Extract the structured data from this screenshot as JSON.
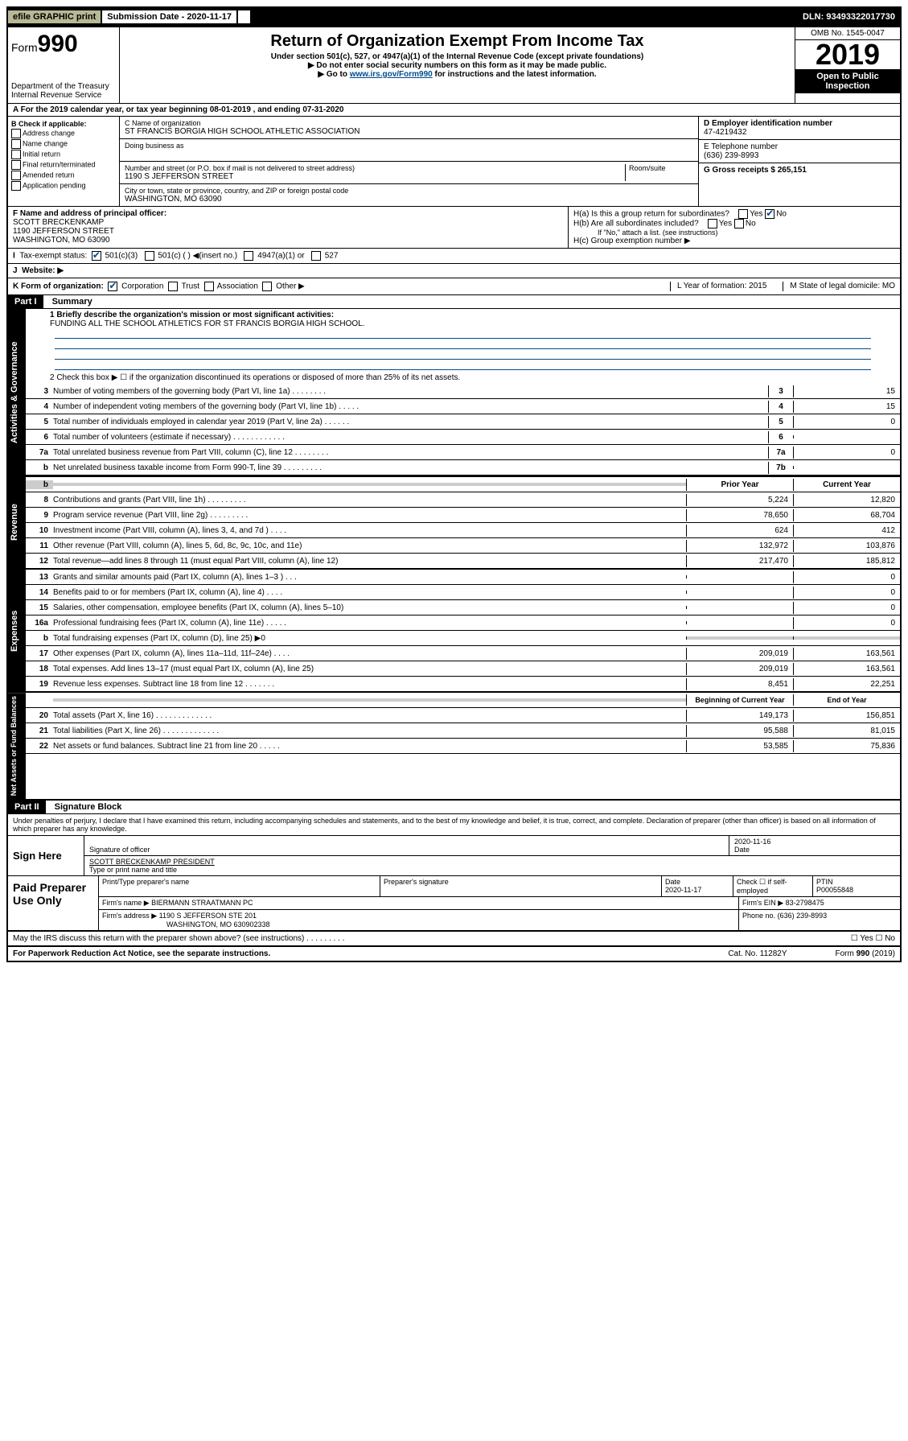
{
  "topbar": {
    "efile": "efile GRAPHIC print",
    "sub_label": "Submission Date - 2020-11-17",
    "dln": "DLN: 93493322017730"
  },
  "header": {
    "form_prefix": "Form",
    "form_num": "990",
    "dept1": "Department of the Treasury",
    "dept2": "Internal Revenue Service",
    "title": "Return of Organization Exempt From Income Tax",
    "sub1": "Under section 501(c), 527, or 4947(a)(1) of the Internal Revenue Code (except private foundations)",
    "sub2": "▶ Do not enter social security numbers on this form as it may be made public.",
    "sub3_pre": "▶ Go to ",
    "sub3_link": "www.irs.gov/Form990",
    "sub3_post": " for instructions and the latest information.",
    "omb": "OMB No. 1545-0047",
    "year": "2019",
    "open": "Open to Public Inspection"
  },
  "period": "A For the 2019 calendar year, or tax year beginning 08-01-2019    , and ending 07-31-2020",
  "boxB": {
    "title": "B Check if applicable:",
    "opts": [
      "Address change",
      "Name change",
      "Initial return",
      "Final return/terminated",
      "Amended return",
      "Application pending"
    ]
  },
  "boxC": {
    "label": "C Name of organization",
    "name": "ST FRANCIS BORGIA HIGH SCHOOL ATHLETIC ASSOCIATION",
    "dba_label": "Doing business as",
    "addr_label": "Number and street (or P.O. box if mail is not delivered to street address)",
    "room": "Room/suite",
    "addr": "1190 S JEFFERSON STREET",
    "city_label": "City or town, state or province, country, and ZIP or foreign postal code",
    "city": "WASHINGTON, MO  63090"
  },
  "boxD": {
    "label": "D Employer identification number",
    "val": "47-4219432"
  },
  "boxE": {
    "label": "E Telephone number",
    "val": "(636) 239-8993"
  },
  "boxG": {
    "label": "G Gross receipts $ 265,151"
  },
  "boxF": {
    "label": "F  Name and address of principal officer:",
    "l1": "SCOTT BRECKENKAMP",
    "l2": "1190 JEFFERSON STREET",
    "l3": "WASHINGTON, MO  63090"
  },
  "boxH": {
    "a": "H(a)  Is this a group return for subordinates?",
    "b": "H(b)  Are all subordinates included?",
    "bnote": "If \"No,\" attach a list. (see instructions)",
    "c": "H(c)  Group exemption number ▶"
  },
  "lineI": {
    "label": "Tax-exempt status:",
    "opts": [
      "501(c)(3)",
      "501(c) (  ) ◀(insert no.)",
      "4947(a)(1) or",
      "527"
    ]
  },
  "lineJ": "Website: ▶",
  "lineK": {
    "left": "K Form of organization:",
    "opts": [
      "Corporation",
      "Trust",
      "Association",
      "Other ▶"
    ],
    "l": "L Year of formation: 2015",
    "m": "M State of legal domicile: MO"
  },
  "part1": {
    "hdr": "Part I",
    "title": "Summary",
    "l1": "1  Briefly describe the organization's mission or most significant activities:",
    "l1v": "FUNDING ALL THE SCHOOL ATHLETICS FOR ST FRANCIS BORGIA HIGH SCHOOL.",
    "l2": "2   Check this box ▶ ☐  if the organization discontinued its operations or disposed of more than 25% of its net assets.",
    "gov_rows": [
      {
        "n": "3",
        "t": "Number of voting members of the governing body (Part VI, line 1a)  .    .    .    .    .    .    .    .",
        "b": "3",
        "v": "15"
      },
      {
        "n": "4",
        "t": "Number of independent voting members of the governing body (Part VI, line 1b)   .    .    .    .    .",
        "b": "4",
        "v": "15"
      },
      {
        "n": "5",
        "t": "Total number of individuals employed in calendar year 2019 (Part V, line 2a)   .    .    .    .    .    .",
        "b": "5",
        "v": "0"
      },
      {
        "n": "6",
        "t": "Total number of volunteers (estimate if necessary)   .    .    .    .    .    .    .    .    .    .    .    .",
        "b": "6",
        "v": ""
      },
      {
        "n": "7a",
        "t": "Total unrelated business revenue from Part VIII, column (C), line 12   .    .    .    .    .    .    .    .",
        "b": "7a",
        "v": "0"
      },
      {
        "n": "b",
        "t": "Net unrelated business taxable income from Form 990-T, line 39   .    .    .    .    .    .    .    .    .",
        "b": "7b",
        "v": ""
      }
    ],
    "col_py": "Prior Year",
    "col_cy": "Current Year",
    "rev_rows": [
      {
        "n": "8",
        "t": "Contributions and grants (Part VIII, line 1h)   .    .    .    .    .    .    .    .    .",
        "py": "5,224",
        "cy": "12,820"
      },
      {
        "n": "9",
        "t": "Program service revenue (Part VIII, line 2g)   .    .    .    .    .    .    .    .    .",
        "py": "78,650",
        "cy": "68,704"
      },
      {
        "n": "10",
        "t": "Investment income (Part VIII, column (A), lines 3, 4, and 7d )   .    .    .    .",
        "py": "624",
        "cy": "412"
      },
      {
        "n": "11",
        "t": "Other revenue (Part VIII, column (A), lines 5, 6d, 8c, 9c, 10c, and 11e)",
        "py": "132,972",
        "cy": "103,876"
      },
      {
        "n": "12",
        "t": "Total revenue—add lines 8 through 11 (must equal Part VIII, column (A), line 12)",
        "py": "217,470",
        "cy": "185,812"
      }
    ],
    "exp_rows": [
      {
        "n": "13",
        "t": "Grants and similar amounts paid (Part IX, column (A), lines 1–3 )   .    .    .",
        "py": "",
        "cy": "0"
      },
      {
        "n": "14",
        "t": "Benefits paid to or for members (Part IX, column (A), line 4)   .    .    .    .",
        "py": "",
        "cy": "0"
      },
      {
        "n": "15",
        "t": "Salaries, other compensation, employee benefits (Part IX, column (A), lines 5–10)",
        "py": "",
        "cy": "0"
      },
      {
        "n": "16a",
        "t": "Professional fundraising fees (Part IX, column (A), line 11e)   .    .    .    .    .",
        "py": "",
        "cy": "0"
      },
      {
        "n": "b",
        "t": "Total fundraising expenses (Part IX, column (D), line 25) ▶0",
        "py": "grey",
        "cy": "grey"
      },
      {
        "n": "17",
        "t": "Other expenses (Part IX, column (A), lines 11a–11d, 11f–24e)   .    .    .    .",
        "py": "209,019",
        "cy": "163,561"
      },
      {
        "n": "18",
        "t": "Total expenses. Add lines 13–17 (must equal Part IX, column (A), line 25)",
        "py": "209,019",
        "cy": "163,561"
      },
      {
        "n": "19",
        "t": "Revenue less expenses. Subtract line 18 from line 12   .    .    .    .    .    .    .",
        "py": "8,451",
        "cy": "22,251"
      }
    ],
    "col_bcy": "Beginning of Current Year",
    "col_eoy": "End of Year",
    "na_rows": [
      {
        "n": "20",
        "t": "Total assets (Part X, line 16)   .    .    .    .    .    .    .    .    .    .    .    .    .",
        "py": "149,173",
        "cy": "156,851"
      },
      {
        "n": "21",
        "t": "Total liabilities (Part X, line 26)   .    .    .    .    .    .    .    .    .    .    .    .    .",
        "py": "95,588",
        "cy": "81,015"
      },
      {
        "n": "22",
        "t": "Net assets or fund balances. Subtract line 21 from line 20   .    .    .    .    .",
        "py": "53,585",
        "cy": "75,836"
      }
    ],
    "tabs": {
      "gov": "Activities & Governance",
      "rev": "Revenue",
      "exp": "Expenses",
      "na": "Net Assets or Fund Balances"
    }
  },
  "part2": {
    "hdr": "Part II",
    "title": "Signature Block",
    "decl": "Under penalties of perjury, I declare that I have examined this return, including accompanying schedules and statements, and to the best of my knowledge and belief, it is true, correct, and complete. Declaration of preparer (other than officer) is based on all information of which preparer has any knowledge."
  },
  "sign": {
    "here": "Sign Here",
    "sig_label": "Signature of officer",
    "date": "2020-11-16",
    "date_label": "Date",
    "name": "SCOTT BRECKENKAMP  PRESIDENT",
    "name_label": "Type or print name and title"
  },
  "paid": {
    "title": "Paid Preparer Use Only",
    "h1": "Print/Type preparer's name",
    "h2": "Preparer's signature",
    "h3": "Date",
    "h3v": "2020-11-17",
    "h4": "Check ☐ if self-employed",
    "h5": "PTIN",
    "h5v": "P00055848",
    "firm_name_l": "Firm's name    ▶",
    "firm_name": "BIERMANN STRAATMANN PC",
    "firm_ein_l": "Firm's EIN ▶",
    "firm_ein": "83-2798475",
    "firm_addr_l": "Firm's address ▶",
    "firm_addr1": "1190 S JEFFERSON STE 201",
    "firm_addr2": "WASHINGTON, MO  630902338",
    "phone_l": "Phone no.",
    "phone": "(636) 239-8993"
  },
  "footer": {
    "q": "May the IRS discuss this return with the preparer shown above? (see instructions)   .    .    .    .    .    .    .    .    .",
    "yn": "☐ Yes  ☐ No",
    "pra": "For Paperwork Reduction Act Notice, see the separate instructions.",
    "cat": "Cat. No. 11282Y",
    "form": "Form 990 (2019)"
  }
}
